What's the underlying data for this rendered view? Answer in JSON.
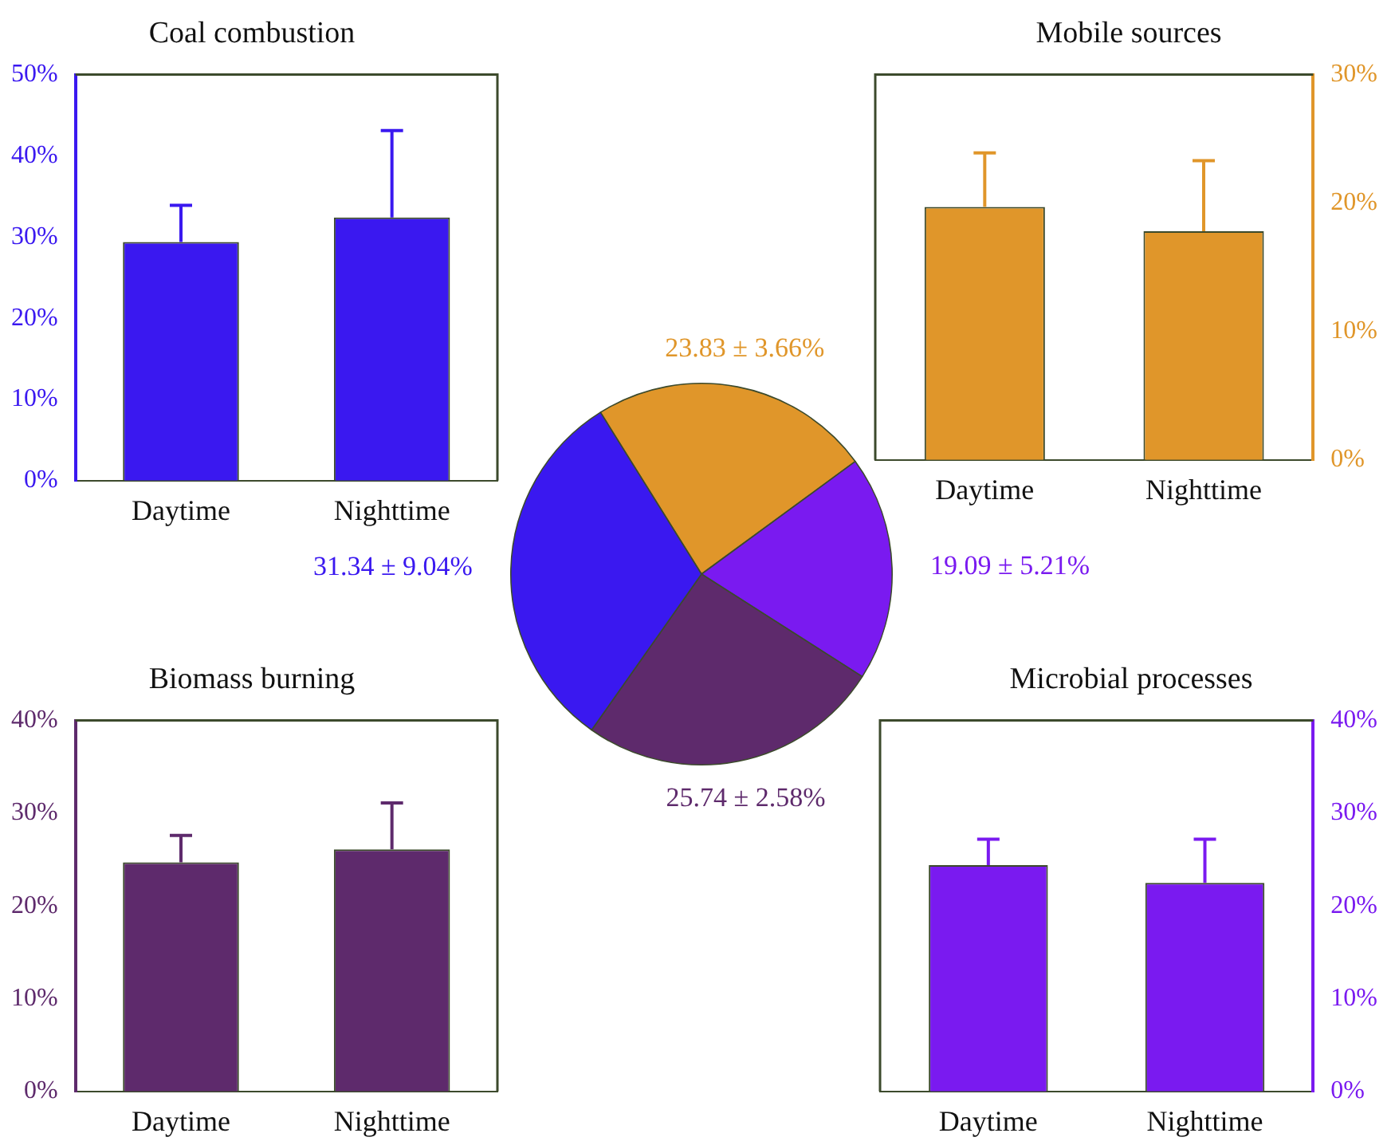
{
  "chart_data": [
    {
      "type": "bar",
      "title": "Coal combustion",
      "categories": [
        "Daytime",
        "Nighttime"
      ],
      "series": [
        {
          "color": "#3a18f0",
          "values": [
            29.4,
            32.4
          ],
          "errors": [
            [
              29.4,
              33.9
            ],
            [
              32.4,
              43.1
            ]
          ]
        }
      ],
      "ylim": [
        0,
        50
      ],
      "yticks": [
        {
          "value": 0,
          "label": "0%"
        },
        {
          "value": 10,
          "label": "10%"
        },
        {
          "value": 20,
          "label": "20%"
        },
        {
          "value": 30,
          "label": "30%"
        },
        {
          "value": 40,
          "label": "40%"
        },
        {
          "value": 50,
          "label": "50%"
        }
      ]
    },
    {
      "type": "bar",
      "title": "Mobile sources",
      "categories": [
        "Daytime",
        "Nighttime"
      ],
      "series": [
        {
          "color": "#e0962a",
          "axis": "y2",
          "values": [
            19.7,
            17.8
          ],
          "errors": [
            [
              19.7,
              23.9
            ],
            [
              17.8,
              23.3
            ]
          ]
        }
      ],
      "y2lim": [
        0,
        30
      ],
      "y2ticks": [
        {
          "value": 0,
          "label": "0%"
        },
        {
          "value": 10,
          "label": "10%"
        },
        {
          "value": 20,
          "label": "20%"
        },
        {
          "value": 30,
          "label": "30%"
        }
      ]
    },
    {
      "type": "pie",
      "categories": [
        null,
        null,
        null,
        null
      ],
      "values": [
        23.83,
        19.09,
        25.74,
        31.34
      ],
      "colors": [
        "#e0962a",
        "#7a1af0",
        "#5e2a6c",
        "#3a18f0"
      ],
      "value_labels": [
        "23.83 ± 3.66%",
        "19.09 ± 5.21%",
        "25.74 ± 2.58%",
        "31.34 ± 9.04%"
      ]
    },
    {
      "type": "bar",
      "title": "Biomass burning",
      "categories": [
        "Daytime",
        "Nighttime"
      ],
      "series": [
        {
          "color": "#5e2a6c",
          "values": [
            24.7,
            26.1
          ],
          "errors": [
            [
              24.7,
              27.6
            ],
            [
              26.1,
              31.1
            ]
          ]
        }
      ],
      "ylim": [
        0,
        40
      ],
      "yticks": [
        {
          "value": 0,
          "label": "0%"
        },
        {
          "value": 10,
          "label": "10%"
        },
        {
          "value": 20,
          "label": "20%"
        },
        {
          "value": 30,
          "label": "30%"
        },
        {
          "value": 40,
          "label": "40%"
        }
      ]
    },
    {
      "type": "bar",
      "title": "Microbial processes",
      "categories": [
        "Daytime",
        "Nighttime"
      ],
      "series": [
        {
          "color": "#7a1af0",
          "axis": "y2",
          "values": [
            24.4,
            22.5
          ],
          "errors": [
            [
              24.4,
              27.2
            ],
            [
              22.5,
              27.2
            ]
          ]
        }
      ],
      "y2lim": [
        0,
        40
      ],
      "y2ticks": [
        {
          "value": 0,
          "label": "0%"
        },
        {
          "value": 10,
          "label": "10%"
        },
        {
          "value": 20,
          "label": "20%"
        },
        {
          "value": 30,
          "label": "30%"
        },
        {
          "value": 40,
          "label": "40%"
        }
      ]
    }
  ]
}
